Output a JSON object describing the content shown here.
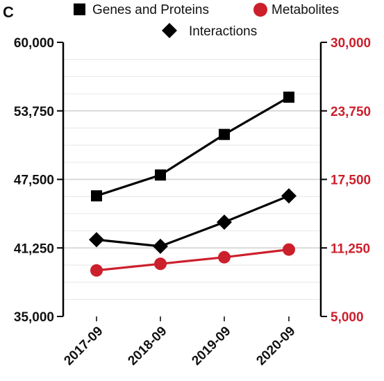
{
  "panel_label": "C",
  "chart_data": {
    "type": "line",
    "categories": [
      "2017-09",
      "2018-09",
      "2019-09",
      "2020-09"
    ],
    "series": [
      {
        "name": "Genes and Proteins",
        "axis": "left",
        "marker": "square",
        "color": "#000000",
        "values": [
          46000,
          47900,
          51600,
          55000
        ]
      },
      {
        "name": "Interactions",
        "axis": "left",
        "marker": "diamond",
        "color": "#000000",
        "values": [
          42000,
          41400,
          43600,
          46000
        ]
      },
      {
        "name": "Metabolites",
        "axis": "right",
        "marker": "circle",
        "color": "#cc1f2c",
        "values": [
          9200,
          9800,
          10400,
          11100
        ]
      }
    ],
    "y_left": {
      "ylim": [
        35000,
        60000
      ],
      "ticks": [
        "60,000",
        "53,750",
        "47,500",
        "41,250",
        "35,000"
      ],
      "color": "#111111"
    },
    "y_right": {
      "ylim": [
        5000,
        30000
      ],
      "ticks": [
        "30,000",
        "23,750",
        "17,500",
        "11,250",
        "5,000"
      ],
      "color": "#cc1f2c"
    },
    "grid": true,
    "legend_placement": "top"
  }
}
